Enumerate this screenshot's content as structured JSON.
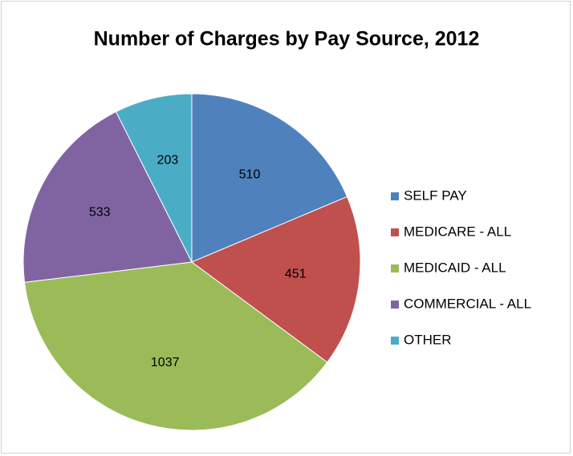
{
  "chart_data": {
    "type": "pie",
    "title": "Number of Charges by Pay Source, 2012",
    "categories": [
      "SELF PAY",
      "MEDICARE - ALL",
      "MEDICAID - ALL",
      "COMMERCIAL - ALL",
      "OTHER"
    ],
    "values": [
      510,
      451,
      1037,
      533,
      203
    ],
    "colors": [
      "#4f81bd",
      "#c0504d",
      "#9bbb59",
      "#8064a2",
      "#4bacc6"
    ],
    "legend": "right"
  }
}
